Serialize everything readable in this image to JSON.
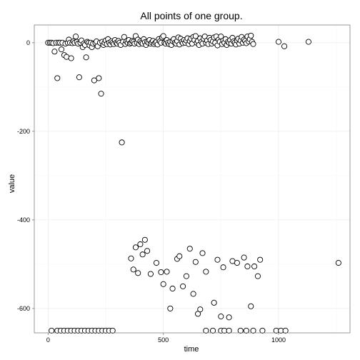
{
  "chart_data": {
    "type": "scatter",
    "title": "All points of one group.",
    "xlabel": "time",
    "ylabel": "value",
    "xlim": [
      -60,
      1310
    ],
    "ylim": [
      -655,
      40
    ],
    "x_ticks": [
      0,
      500,
      1000
    ],
    "y_ticks": [
      0,
      -200,
      -400,
      -600
    ],
    "grid": true,
    "legend": "none",
    "series": [
      {
        "points": [
          [
            0,
            0
          ],
          [
            8,
            0
          ],
          [
            15,
            0
          ],
          [
            22,
            -1
          ],
          [
            28,
            -20
          ],
          [
            35,
            0
          ],
          [
            40,
            -80
          ],
          [
            45,
            0
          ],
          [
            52,
            0
          ],
          [
            58,
            -15
          ],
          [
            62,
            0
          ],
          [
            70,
            -28
          ],
          [
            75,
            -2
          ],
          [
            80,
            -32
          ],
          [
            85,
            0
          ],
          [
            90,
            7
          ],
          [
            95,
            0
          ],
          [
            100,
            -35
          ],
          [
            105,
            -1
          ],
          [
            110,
            3
          ],
          [
            115,
            0
          ],
          [
            120,
            14
          ],
          [
            125,
            2
          ],
          [
            130,
            -2
          ],
          [
            135,
            -78
          ],
          [
            140,
            0
          ],
          [
            145,
            5
          ],
          [
            150,
            -10
          ],
          [
            155,
            -2
          ],
          [
            160,
            -5
          ],
          [
            165,
            -33
          ],
          [
            170,
            2
          ],
          [
            175,
            0
          ],
          [
            180,
            -6
          ],
          [
            185,
            0
          ],
          [
            190,
            -10
          ],
          [
            195,
            -2
          ],
          [
            200,
            -85
          ],
          [
            205,
            0
          ],
          [
            210,
            3
          ],
          [
            215,
            -8
          ],
          [
            220,
            -80
          ],
          [
            225,
            0
          ],
          [
            230,
            -115
          ],
          [
            235,
            2
          ],
          [
            240,
            -5
          ],
          [
            245,
            0
          ],
          [
            250,
            5
          ],
          [
            255,
            -3
          ],
          [
            260,
            8
          ],
          [
            265,
            0
          ],
          [
            270,
            -4
          ],
          [
            275,
            3
          ],
          [
            280,
            0
          ],
          [
            285,
            -3
          ],
          [
            290,
            6
          ],
          [
            295,
            0
          ],
          [
            300,
            -2
          ],
          [
            305,
            4
          ],
          [
            310,
            0
          ],
          [
            315,
            -5
          ],
          [
            320,
            -225
          ],
          [
            325,
            2
          ],
          [
            330,
            13
          ],
          [
            335,
            -3
          ],
          [
            340,
            3
          ],
          [
            345,
            0
          ],
          [
            350,
            6
          ],
          [
            355,
            -2
          ],
          [
            360,
            0
          ],
          [
            365,
            4
          ],
          [
            370,
            2
          ],
          [
            375,
            -2
          ],
          [
            380,
            15
          ],
          [
            385,
            0
          ],
          [
            390,
            7
          ],
          [
            395,
            -3
          ],
          [
            400,
            3
          ],
          [
            405,
            0
          ],
          [
            410,
            -2
          ],
          [
            415,
            8
          ],
          [
            420,
            1
          ],
          [
            425,
            -5
          ],
          [
            430,
            2
          ],
          [
            435,
            0
          ],
          [
            440,
            6
          ],
          [
            445,
            -2
          ],
          [
            450,
            1
          ],
          [
            455,
            4
          ],
          [
            460,
            -3
          ],
          [
            465,
            0
          ],
          [
            470,
            2
          ],
          [
            475,
            -4
          ],
          [
            480,
            8
          ],
          [
            485,
            3
          ],
          [
            490,
            0
          ],
          [
            495,
            12
          ],
          [
            500,
            15
          ],
          [
            505,
            0
          ],
          [
            510,
            -2
          ],
          [
            515,
            6
          ],
          [
            520,
            0
          ],
          [
            525,
            -3
          ],
          [
            530,
            2
          ],
          [
            535,
            -5
          ],
          [
            540,
            4
          ],
          [
            545,
            8
          ],
          [
            550,
            0
          ],
          [
            555,
            -2
          ],
          [
            560,
            4
          ],
          [
            565,
            12
          ],
          [
            570,
            -4
          ],
          [
            575,
            9
          ],
          [
            580,
            2
          ],
          [
            585,
            -1
          ],
          [
            590,
            6
          ],
          [
            595,
            0
          ],
          [
            600,
            5
          ],
          [
            605,
            10
          ],
          [
            610,
            -3
          ],
          [
            615,
            4
          ],
          [
            620,
            9
          ],
          [
            625,
            -2
          ],
          [
            630,
            13
          ],
          [
            635,
            6
          ],
          [
            640,
            15
          ],
          [
            645,
            0
          ],
          [
            650,
            4
          ],
          [
            655,
            -5
          ],
          [
            660,
            10
          ],
          [
            665,
            2
          ],
          [
            670,
            -2
          ],
          [
            675,
            9
          ],
          [
            680,
            14
          ],
          [
            685,
            0
          ],
          [
            690,
            5
          ],
          [
            695,
            -3
          ],
          [
            700,
            11
          ],
          [
            705,
            6
          ],
          [
            710,
            -2
          ],
          [
            715,
            3
          ],
          [
            720,
            12
          ],
          [
            725,
            0
          ],
          [
            730,
            14
          ],
          [
            735,
            -6
          ],
          [
            740,
            7
          ],
          [
            745,
            2
          ],
          [
            750,
            14
          ],
          [
            755,
            -3
          ],
          [
            760,
            5
          ],
          [
            765,
            0
          ],
          [
            770,
            8
          ],
          [
            775,
            -5
          ],
          [
            780,
            2
          ],
          [
            785,
            0
          ],
          [
            790,
            6
          ],
          [
            795,
            -2
          ],
          [
            800,
            11
          ],
          [
            805,
            3
          ],
          [
            810,
            0
          ],
          [
            815,
            -4
          ],
          [
            820,
            5
          ],
          [
            825,
            9
          ],
          [
            830,
            -2
          ],
          [
            835,
            5
          ],
          [
            840,
            13
          ],
          [
            845,
            0
          ],
          [
            850,
            7
          ],
          [
            855,
            4
          ],
          [
            860,
            -1
          ],
          [
            865,
            14
          ],
          [
            870,
            3
          ],
          [
            875,
            8
          ],
          [
            880,
            16
          ],
          [
            885,
            2
          ],
          [
            890,
            -3
          ],
          [
            1000,
            2
          ],
          [
            1025,
            -8
          ],
          [
            1130,
            2
          ],
          [
            360,
            -487
          ],
          [
            370,
            -512
          ],
          [
            380,
            -462
          ],
          [
            390,
            -520
          ],
          [
            400,
            -455
          ],
          [
            410,
            -478
          ],
          [
            420,
            -445
          ],
          [
            430,
            -470
          ],
          [
            445,
            -522
          ],
          [
            470,
            -497
          ],
          [
            490,
            -518
          ],
          [
            500,
            -545
          ],
          [
            515,
            -517
          ],
          [
            530,
            -600
          ],
          [
            540,
            -555
          ],
          [
            560,
            -488
          ],
          [
            570,
            -482
          ],
          [
            585,
            -550
          ],
          [
            600,
            -527
          ],
          [
            615,
            -465
          ],
          [
            630,
            -567
          ],
          [
            640,
            -495
          ],
          [
            650,
            -612
          ],
          [
            660,
            -602
          ],
          [
            670,
            -475
          ],
          [
            685,
            -517
          ],
          [
            720,
            -587
          ],
          [
            735,
            -490
          ],
          [
            750,
            -618
          ],
          [
            760,
            -507
          ],
          [
            785,
            -620
          ],
          [
            800,
            -493
          ],
          [
            820,
            -497
          ],
          [
            850,
            -485
          ],
          [
            865,
            -505
          ],
          [
            880,
            -595
          ],
          [
            895,
            -505
          ],
          [
            910,
            -527
          ],
          [
            920,
            -490
          ],
          [
            1260,
            -497
          ],
          [
            15,
            -650
          ],
          [
            40,
            -650
          ],
          [
            55,
            -650
          ],
          [
            70,
            -650
          ],
          [
            85,
            -650
          ],
          [
            100,
            -650
          ],
          [
            115,
            -650
          ],
          [
            130,
            -650
          ],
          [
            145,
            -650
          ],
          [
            160,
            -650
          ],
          [
            175,
            -650
          ],
          [
            190,
            -650
          ],
          [
            205,
            -650
          ],
          [
            220,
            -650
          ],
          [
            235,
            -650
          ],
          [
            250,
            -650
          ],
          [
            265,
            -650
          ],
          [
            280,
            -650
          ],
          [
            685,
            -650
          ],
          [
            715,
            -650
          ],
          [
            750,
            -650
          ],
          [
            765,
            -650
          ],
          [
            785,
            -650
          ],
          [
            835,
            -650
          ],
          [
            860,
            -650
          ],
          [
            890,
            -650
          ],
          [
            930,
            -650
          ],
          [
            990,
            -650
          ],
          [
            1010,
            -650
          ],
          [
            1030,
            -650
          ]
        ]
      }
    ]
  }
}
